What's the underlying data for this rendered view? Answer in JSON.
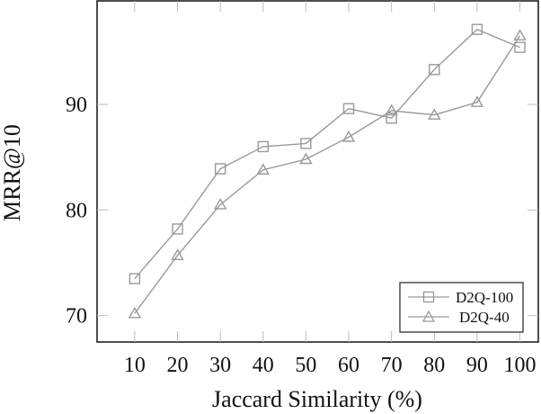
{
  "chart_data": {
    "type": "line",
    "title": "",
    "xlabel": "Jaccard Similarity (%)",
    "ylabel": "MRR@10",
    "x": [
      10,
      20,
      30,
      40,
      50,
      60,
      70,
      80,
      90,
      100
    ],
    "xticks": [
      "10",
      "20",
      "30",
      "40",
      "50",
      "60",
      "70",
      "80",
      "90",
      "100"
    ],
    "yticks": [
      "70",
      "80",
      "90"
    ],
    "ytick_values": [
      70,
      80,
      90
    ],
    "xlim": [
      1.2,
      104.3
    ],
    "ylim": [
      67.5,
      99.8
    ],
    "grid": false,
    "legend_position": "lower right",
    "series": [
      {
        "name": "D2Q-100",
        "marker": "square",
        "color": "#999999",
        "values": [
          73.5,
          78.2,
          83.9,
          86.0,
          86.3,
          89.6,
          88.7,
          93.3,
          97.1,
          95.4
        ]
      },
      {
        "name": "D2Q-40",
        "marker": "triangle",
        "color": "#999999",
        "values": [
          70.2,
          75.7,
          80.5,
          83.8,
          84.8,
          86.9,
          89.4,
          89.0,
          90.2,
          96.5
        ]
      }
    ]
  },
  "legend": {
    "items": [
      {
        "label": "D2Q-100"
      },
      {
        "label": "D2Q-40"
      }
    ]
  }
}
